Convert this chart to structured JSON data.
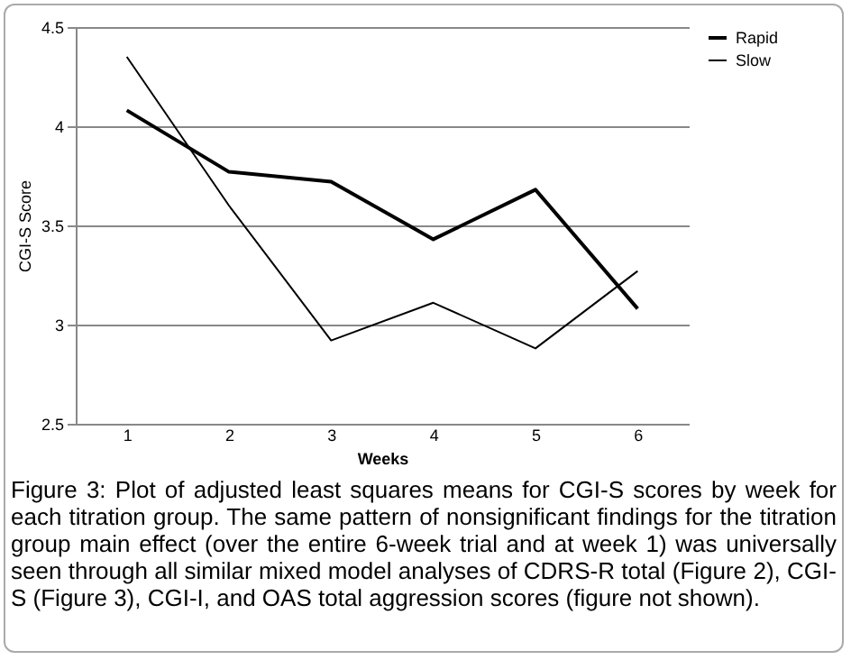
{
  "chart_data": {
    "type": "line",
    "xlabel": "Weeks",
    "ylabel": "CGI-S Score",
    "categories": [
      "1",
      "2",
      "3",
      "4",
      "5",
      "6"
    ],
    "series": [
      {
        "name": "Rapid",
        "color": "#000000",
        "values": [
          4.08,
          3.77,
          3.72,
          3.43,
          3.68,
          3.08
        ]
      },
      {
        "name": "Slow",
        "color": "#000000",
        "values": [
          4.35,
          3.6,
          2.92,
          3.11,
          2.88,
          3.27
        ]
      }
    ],
    "ylim": [
      2.5,
      4.5
    ],
    "yticks": [
      2.5,
      3,
      3.5,
      4,
      4.5
    ],
    "grid": "y",
    "legend": "right",
    "marker": "none",
    "annotations": [
      "Figure 3: Plot of adjusted least squares means for CGI-S scores by week for each titration group. The same pattern of nonsignificant findings for the titration group main effect (over the entire 6-week trial and at week 1) was universally seen through all similar mixed model analyses of CDRS-R total (Figure 2), CGI-S (Figure 3), CGI-I, and OAS total aggression scores (figure not shown)."
    ]
  }
}
